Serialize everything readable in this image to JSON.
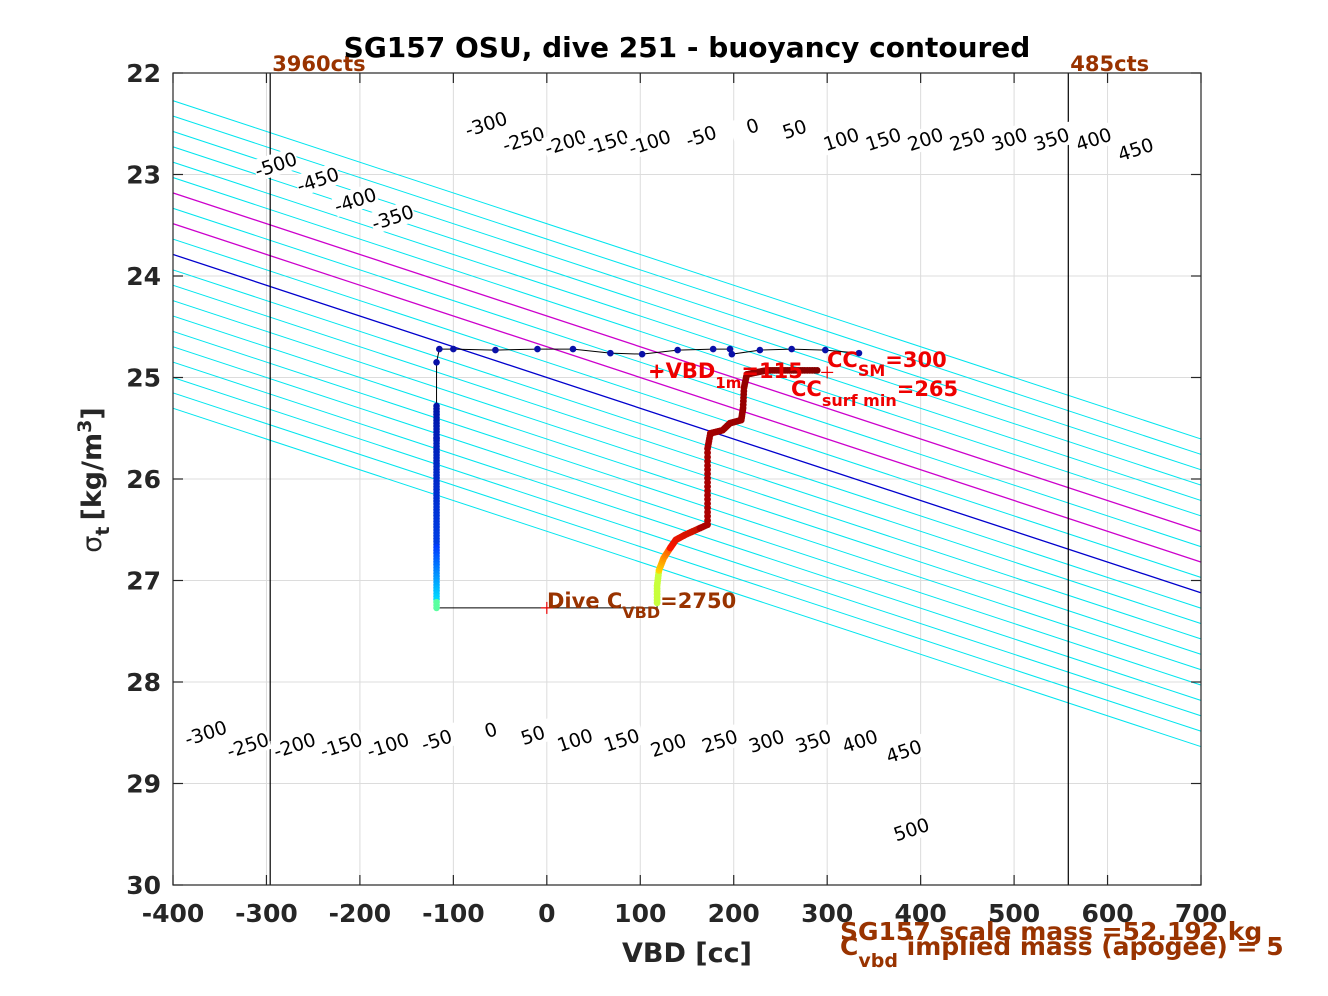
{
  "chart_data": {
    "type": "scatter",
    "title": "SG157 OSU, dive 251 - buoyancy contoured",
    "xlabel": "VBD [cc]",
    "ylabel_main": "σ",
    "ylabel_sub": "t",
    "ylabel_unit": "[kg/m",
    "ylabel_exp": "3",
    "ylabel_close": "]",
    "xlim": [
      -400,
      700
    ],
    "ylim": [
      22,
      30
    ],
    "y_reversed": true,
    "grid": true,
    "x_ticks": [
      "-400",
      "-300",
      "-200",
      "-100",
      "0",
      "100",
      "200",
      "300",
      "400",
      "500",
      "600",
      "700"
    ],
    "y_ticks": [
      "22",
      "23",
      "24",
      "25",
      "26",
      "27",
      "28",
      "29",
      "30"
    ],
    "contour_slope": 330,
    "contour_levels": [
      -500,
      -450,
      -400,
      -350,
      -300,
      -250,
      -200,
      -150,
      -100,
      -50,
      0,
      50,
      100,
      150,
      200,
      250,
      300,
      350,
      400,
      450,
      500
    ],
    "contour_colors": {
      "normal": "#00e5ee",
      "zero": "#0000cd",
      "highlight": "#cc00cc"
    },
    "highlight_levels": [
      100,
      200
    ],
    "top_labels": [
      {
        "text": "-500",
        "x": -290,
        "y": 22.9
      },
      {
        "text": "-450",
        "x": -245,
        "y": 23.05
      },
      {
        "text": "-400",
        "x": -205,
        "y": 23.25
      },
      {
        "text": "-350",
        "x": -165,
        "y": 23.42
      },
      {
        "text": "-300",
        "x": -65,
        "y": 22.5
      },
      {
        "text": "-250",
        "x": -25,
        "y": 22.65
      },
      {
        "text": "-200",
        "x": 20,
        "y": 22.68
      },
      {
        "text": "-150",
        "x": 65,
        "y": 22.68
      },
      {
        "text": "-100",
        "x": 110,
        "y": 22.68
      },
      {
        "text": "-50",
        "x": 165,
        "y": 22.62
      },
      {
        "text": "0",
        "x": 220,
        "y": 22.52
      },
      {
        "text": "50",
        "x": 265,
        "y": 22.55
      },
      {
        "text": "100",
        "x": 315,
        "y": 22.65
      },
      {
        "text": "150",
        "x": 360,
        "y": 22.65
      },
      {
        "text": "200",
        "x": 405,
        "y": 22.65
      },
      {
        "text": "250",
        "x": 450,
        "y": 22.65
      },
      {
        "text": "300",
        "x": 495,
        "y": 22.65
      },
      {
        "text": "350",
        "x": 540,
        "y": 22.65
      },
      {
        "text": "400",
        "x": 585,
        "y": 22.65
      },
      {
        "text": "450",
        "x": 630,
        "y": 22.75
      }
    ],
    "bottom_labels": [
      {
        "text": "-300",
        "x": -365,
        "y": 28.5
      },
      {
        "text": "-250",
        "x": -320,
        "y": 28.62
      },
      {
        "text": "-200",
        "x": -270,
        "y": 28.62
      },
      {
        "text": "-150",
        "x": -220,
        "y": 28.62
      },
      {
        "text": "-100",
        "x": -170,
        "y": 28.62
      },
      {
        "text": "-50",
        "x": -118,
        "y": 28.57
      },
      {
        "text": "0",
        "x": -60,
        "y": 28.47
      },
      {
        "text": "50",
        "x": -15,
        "y": 28.52
      },
      {
        "text": "100",
        "x": 30,
        "y": 28.57
      },
      {
        "text": "150",
        "x": 80,
        "y": 28.57
      },
      {
        "text": "200",
        "x": 130,
        "y": 28.62
      },
      {
        "text": "250",
        "x": 185,
        "y": 28.58
      },
      {
        "text": "300",
        "x": 235,
        "y": 28.58
      },
      {
        "text": "350",
        "x": 285,
        "y": 28.58
      },
      {
        "text": "400",
        "x": 335,
        "y": 28.58
      },
      {
        "text": "450",
        "x": 382,
        "y": 28.68
      },
      {
        "text": "500",
        "x": 390,
        "y": 29.45
      }
    ],
    "vertical_lines": [
      {
        "x": -296,
        "label": "3960cts"
      },
      {
        "x": 558,
        "label": "485cts"
      }
    ],
    "track": [
      [
        -118,
        27.25
      ],
      [
        -118,
        25.6
      ],
      [
        -118,
        24.85
      ],
      [
        -115,
        24.72
      ],
      [
        -100,
        24.72
      ],
      [
        -55,
        24.73
      ],
      [
        -10,
        24.72
      ],
      [
        28,
        24.72
      ],
      [
        68,
        24.76
      ],
      [
        102,
        24.77
      ],
      [
        140,
        24.73
      ],
      [
        178,
        24.72
      ],
      [
        196,
        24.72
      ],
      [
        198,
        24.77
      ],
      [
        228,
        24.73
      ],
      [
        262,
        24.72
      ],
      [
        298,
        24.73
      ],
      [
        334,
        24.76
      ]
    ],
    "track_bottom": [
      [
        -118,
        27.27
      ],
      [
        -10,
        27.27
      ],
      [
        118,
        27.27
      ],
      [
        118,
        27.2
      ]
    ],
    "ascent_points": [
      [
        118,
        27.22
      ],
      [
        118,
        27.05
      ],
      [
        120,
        26.9
      ],
      [
        125,
        26.78
      ],
      [
        132,
        26.68
      ],
      [
        138,
        26.6
      ],
      [
        148,
        26.55
      ],
      [
        160,
        26.5
      ],
      [
        172,
        26.45
      ],
      [
        172,
        26.2
      ],
      [
        172,
        25.95
      ],
      [
        172,
        25.7
      ],
      [
        175,
        25.55
      ],
      [
        188,
        25.52
      ],
      [
        196,
        25.45
      ],
      [
        208,
        25.42
      ],
      [
        210,
        25.3
      ],
      [
        211,
        25.1
      ],
      [
        214,
        24.97
      ],
      [
        224,
        24.95
      ],
      [
        235,
        24.93
      ],
      [
        248,
        24.93
      ],
      [
        262,
        24.93
      ],
      [
        276,
        24.93
      ],
      [
        292,
        24.93
      ]
    ],
    "descent_range": {
      "x": -118,
      "y_top": 25.28,
      "y_bottom": 27.27
    },
    "markers": [
      {
        "name": "VBD_1m",
        "x": 117,
        "y": 24.95
      },
      {
        "name": "CC_SM",
        "x": 300,
        "y": 24.95
      },
      {
        "name": "Dive_C",
        "x": 0,
        "y": 27.27
      }
    ],
    "annotations": {
      "vbd1m_main": "+VBD",
      "vbd1m_sub": "1m",
      "vbd1m_val": "=115",
      "ccsm_main": "CC",
      "ccsm_sub": "SM",
      "ccsm_val": "=300",
      "ccsurf_main": "CC",
      "ccsurf_sub": "surf min",
      "ccsurf_val": "=265",
      "dive_main": "Dive C",
      "dive_sub": "VBD",
      "dive_val": "=2750",
      "footer1": "SG157 scale mass =52.192 kg",
      "footer2_main": "C",
      "footer2_sub": "vbd",
      "footer2_rest": " implied mass (apogee) = 5"
    },
    "colors": {
      "red": "#ee0000",
      "brown": "#993300",
      "track": "#000000"
    }
  }
}
